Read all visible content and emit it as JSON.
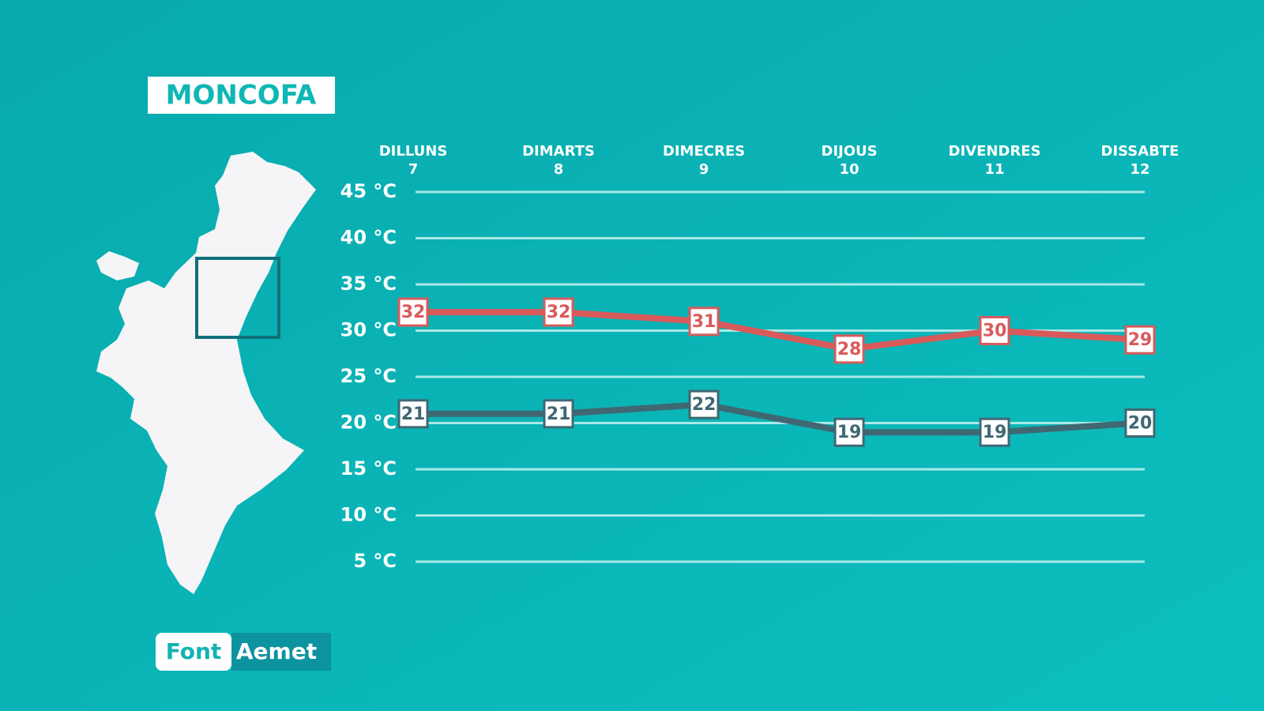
{
  "chart_data": {
    "type": "line",
    "title": "MONCOFA",
    "categories": [
      "DILLUNS",
      "DIMARTS",
      "DIMECRES",
      "DIJOUS",
      "DIVENDRES",
      "DISSABTE"
    ],
    "dates": [
      "7",
      "8",
      "9",
      "10",
      "11",
      "12"
    ],
    "series": [
      {
        "color": "#d95a5b",
        "values": [
          32,
          32,
          31,
          28,
          30,
          29
        ]
      },
      {
        "color": "#3f6873",
        "values": [
          21,
          21,
          22,
          19,
          19,
          20
        ]
      }
    ],
    "ylim": [
      5,
      45
    ],
    "yticks": [
      {
        "value": 5,
        "label": "5 °C"
      },
      {
        "value": 10,
        "label": "10 °C"
      },
      {
        "value": 15,
        "label": "15 °C"
      },
      {
        "value": 20,
        "label": "20 °C"
      },
      {
        "value": 25,
        "label": "25 °C"
      },
      {
        "value": 30,
        "label": "30 °C"
      },
      {
        "value": 35,
        "label": "35 °C"
      },
      {
        "value": 40,
        "label": "40 °C"
      },
      {
        "value": 45,
        "label": "45 °C"
      }
    ],
    "grid": true,
    "source": {
      "label": "Font",
      "value": "Aemet"
    }
  }
}
